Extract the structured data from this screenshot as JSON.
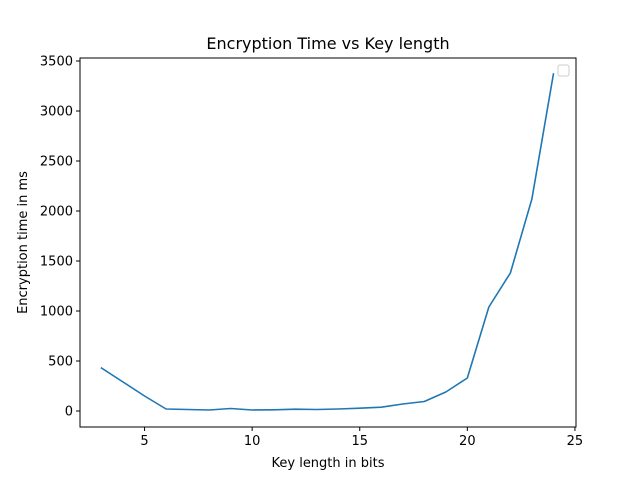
{
  "chart_data": {
    "type": "line",
    "title": "Encryption Time vs Key length",
    "xlabel": "Key length in bits",
    "ylabel": "Encryption time in ms",
    "xlim": [
      2.0,
      25.05
    ],
    "ylim": [
      -160,
      3530
    ],
    "x_ticks": [
      5,
      10,
      15,
      20,
      25
    ],
    "y_ticks": [
      0,
      500,
      1000,
      1500,
      2000,
      2500,
      3000,
      3500
    ],
    "grid": false,
    "legend": "top-right",
    "legend_entries": [],
    "series": [
      {
        "color": "#1f77b4",
        "x": [
          3,
          4,
          5,
          6,
          7,
          8,
          9,
          10,
          11,
          12,
          13,
          14,
          15,
          16,
          17,
          18,
          19,
          20,
          21,
          22,
          23,
          24
        ],
        "y": [
          430,
          290,
          150,
          20,
          15,
          10,
          25,
          10,
          12,
          18,
          15,
          20,
          28,
          38,
          70,
          95,
          190,
          330,
          1040,
          1380,
          2120,
          3370
        ]
      }
    ]
  }
}
